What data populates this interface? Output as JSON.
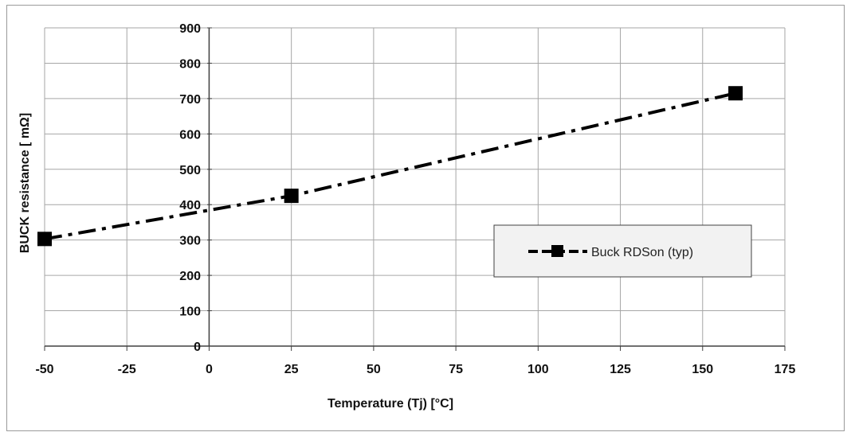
{
  "chart_data": {
    "type": "line",
    "title": "",
    "xlabel": "Temperature (Tj)  [°C]",
    "ylabel": "BUCK resistance [ mΩ]",
    "xlim": [
      -50,
      175
    ],
    "ylim": [
      0,
      900
    ],
    "x_ticks": [
      -50,
      -25,
      0,
      25,
      50,
      75,
      100,
      125,
      150,
      175
    ],
    "y_ticks": [
      0,
      100,
      200,
      300,
      400,
      500,
      600,
      700,
      800,
      900
    ],
    "x_tick_labels": [
      "-50",
      "-25",
      "0",
      "25",
      "50",
      "75",
      "100",
      "125",
      "150",
      "175"
    ],
    "y_tick_labels": [
      "0",
      "100",
      "200",
      "300",
      "400",
      "500",
      "600",
      "700",
      "800",
      "900"
    ],
    "grid": true,
    "legend_position": "right",
    "series": [
      {
        "name": "Buck RDSon (typ)",
        "line_style": "dash-dot",
        "marker": "square",
        "color": "#000000",
        "x": [
          -50,
          25,
          160
        ],
        "y": [
          303,
          425,
          715
        ]
      }
    ]
  }
}
